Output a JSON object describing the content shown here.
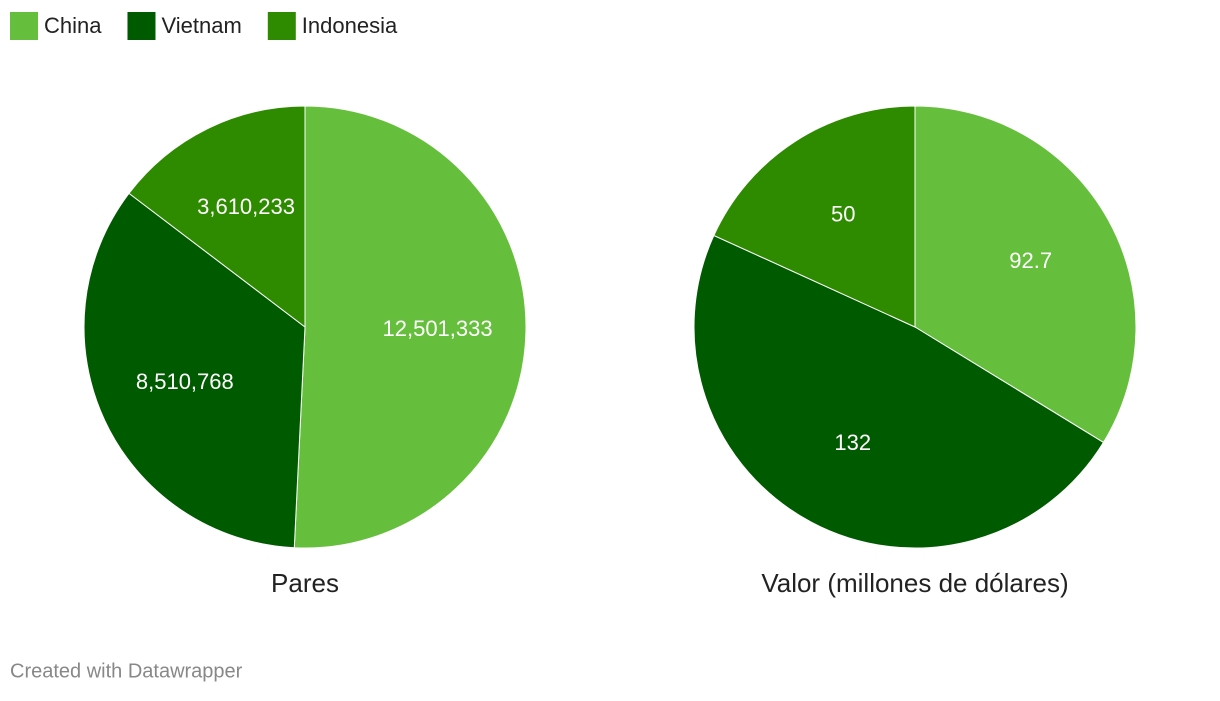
{
  "chart_data": [
    {
      "type": "pie",
      "title": "Pares",
      "categories": [
        "China",
        "Vietnam",
        "Indonesia"
      ],
      "values": [
        12501333,
        8510768,
        3610233
      ],
      "value_labels": [
        "12,501,333",
        "8,510,768",
        "3,610,233"
      ],
      "colors": [
        "#66bf3c",
        "#005a00",
        "#2e8b00"
      ]
    },
    {
      "type": "pie",
      "title": "Valor (millones de dólares)",
      "categories": [
        "China",
        "Vietnam",
        "Indonesia"
      ],
      "values": [
        92.7,
        132,
        50
      ],
      "colors": [
        "#66bf3c",
        "#005a00",
        "#2e8b00"
      ]
    }
  ],
  "footer": "Created with Datawrapper"
}
